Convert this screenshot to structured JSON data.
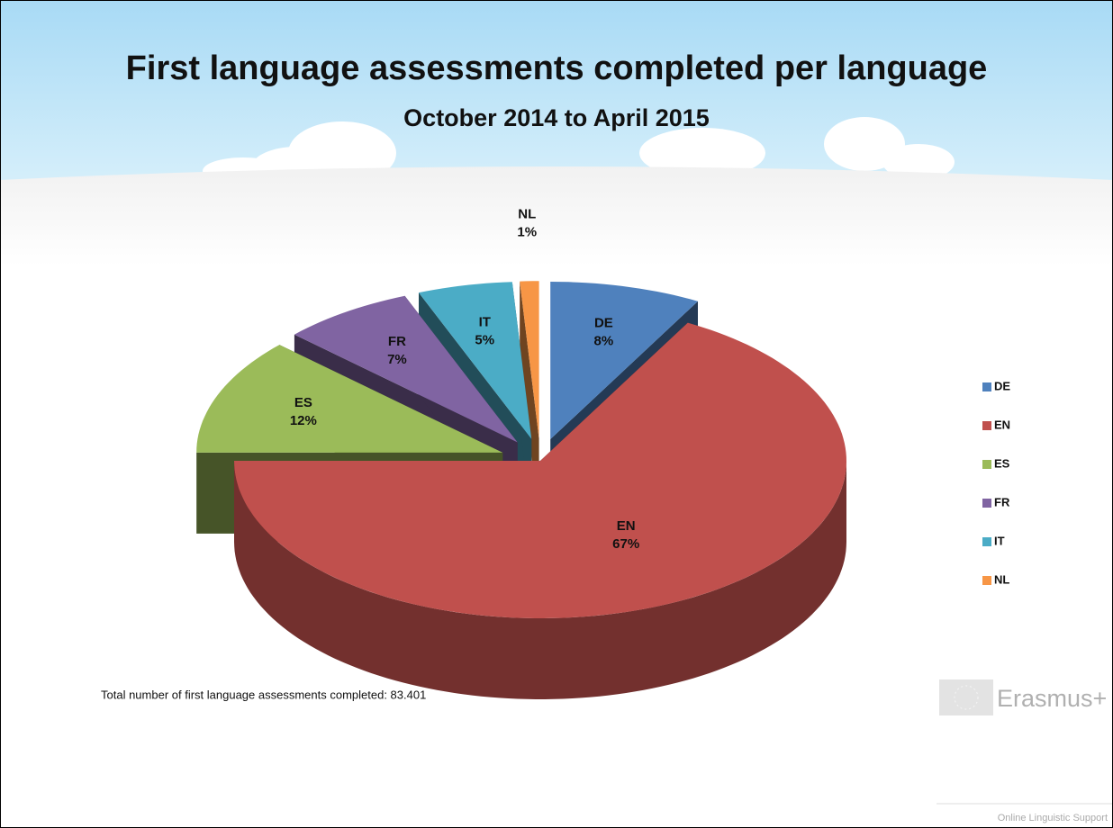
{
  "chart_data": {
    "type": "pie",
    "title": "First language assessments completed per language",
    "subtitle": "October 2014 to April 2015",
    "categories": [
      "DE",
      "EN",
      "ES",
      "FR",
      "IT",
      "NL"
    ],
    "values": [
      8,
      67,
      12,
      7,
      5,
      1
    ],
    "value_labels": [
      "8%",
      "67%",
      "12%",
      "7%",
      "5%",
      "1%"
    ],
    "colors": [
      "#4f81bd",
      "#c0504d",
      "#9bbb59",
      "#8064a2",
      "#4bacc6",
      "#f79646"
    ],
    "legend": "right",
    "annotation": "Total number of first language assessments completed: 83.401"
  },
  "logo": {
    "name": "Erasmus+",
    "tagline": "Online Linguistic Support"
  }
}
